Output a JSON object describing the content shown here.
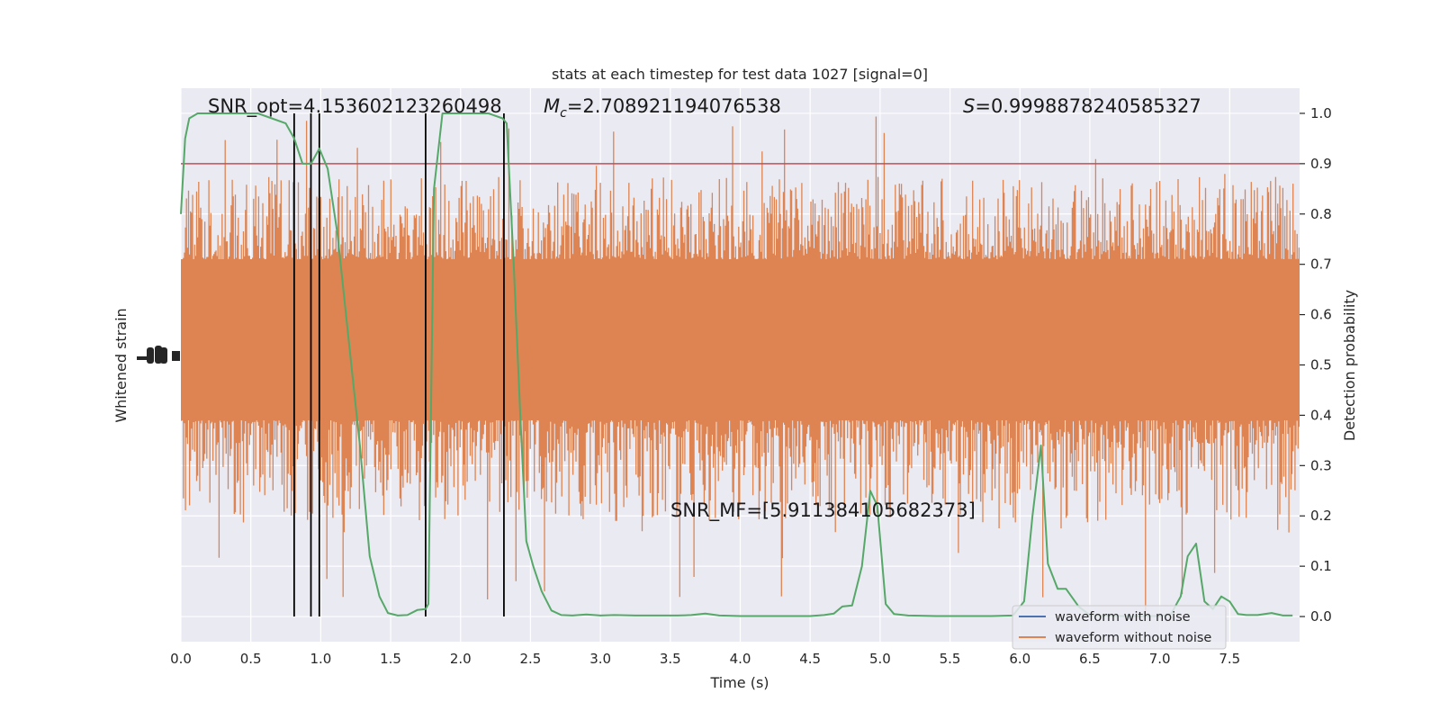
{
  "chart_data": {
    "type": "line",
    "title": "stats at each timestep for test data 1027 [signal=0]",
    "xlabel": "Time (s)",
    "ylabel_left": "Whitened strain",
    "ylabel_right": "Detection probability",
    "xlim": [
      0,
      8
    ],
    "ylim_right": [
      -0.05,
      1.05
    ],
    "x_ticks": [
      "0.0",
      "0.5",
      "1.0",
      "1.5",
      "2.0",
      "2.5",
      "3.0",
      "3.5",
      "4.0",
      "4.5",
      "5.0",
      "5.5",
      "6.0",
      "6.5",
      "7.0",
      "7.5"
    ],
    "y_ticks_right": [
      "0.0",
      "0.1",
      "0.2",
      "0.3",
      "0.4",
      "0.5",
      "0.6",
      "0.7",
      "0.8",
      "0.9",
      "1.0"
    ],
    "grid": true,
    "legend_position": "lower-right",
    "legend": [
      "waveform with noise",
      "waveform without noise"
    ],
    "series_colors": {
      "waveform with noise": "#4c72b0",
      "waveform without noise": "#dd8452",
      "detection_probability": "#55a868",
      "threshold": "#c44e52",
      "markers": "#000000"
    },
    "annotations": {
      "snr_opt": "SNR_opt=4.153602123260498",
      "mc": "=2.708921194076538",
      "mc_symbol": "M",
      "mc_sub": "c",
      "s": "=0.9998878240585327",
      "s_symbol": "S",
      "snr_mf": "SNR_MF=[5.911384105682373]"
    },
    "threshold": 0.9,
    "vertical_markers": [
      0.81,
      0.93,
      0.99,
      1.75,
      2.31
    ],
    "strain_band_probability_units": {
      "core_low": 0.39,
      "core_high": 0.71,
      "spike_low": 0.0,
      "spike_high": 1.0
    },
    "detection_probability": {
      "x": [
        0.0,
        0.03,
        0.06,
        0.12,
        0.25,
        0.4,
        0.55,
        0.65,
        0.75,
        0.81,
        0.87,
        0.93,
        0.99,
        1.05,
        1.12,
        1.2,
        1.28,
        1.35,
        1.42,
        1.48,
        1.55,
        1.62,
        1.69,
        1.75,
        1.77,
        1.81,
        1.87,
        1.95,
        2.05,
        2.2,
        2.3,
        2.33,
        2.38,
        2.43,
        2.47,
        2.52,
        2.58,
        2.65,
        2.72,
        2.8,
        2.9,
        3.0,
        3.1,
        3.25,
        3.4,
        3.55,
        3.65,
        3.75,
        3.85,
        4.0,
        4.2,
        4.4,
        4.5,
        4.6,
        4.67,
        4.73,
        4.8,
        4.87,
        4.93,
        4.98,
        5.04,
        5.1,
        5.2,
        5.4,
        5.6,
        5.8,
        5.95,
        6.03,
        6.09,
        6.15,
        6.2,
        6.27,
        6.33,
        6.42,
        6.5,
        6.6,
        6.7,
        6.85,
        7.0,
        7.08,
        7.15,
        7.2,
        7.26,
        7.32,
        7.38,
        7.44,
        7.5,
        7.56,
        7.62,
        7.7,
        7.8,
        7.88,
        7.95
      ],
      "y": [
        0.8,
        0.95,
        0.99,
        1.0,
        1.0,
        1.0,
        1.0,
        0.99,
        0.98,
        0.95,
        0.9,
        0.9,
        0.93,
        0.89,
        0.76,
        0.55,
        0.34,
        0.12,
        0.04,
        0.007,
        0.002,
        0.003,
        0.013,
        0.015,
        0.025,
        0.85,
        1.0,
        1.0,
        1.0,
        1.0,
        0.99,
        0.98,
        0.7,
        0.38,
        0.15,
        0.1,
        0.05,
        0.012,
        0.003,
        0.002,
        0.004,
        0.002,
        0.003,
        0.002,
        0.002,
        0.002,
        0.003,
        0.006,
        0.002,
        0.001,
        0.001,
        0.001,
        0.001,
        0.003,
        0.006,
        0.02,
        0.022,
        0.1,
        0.25,
        0.22,
        0.025,
        0.005,
        0.002,
        0.001,
        0.001,
        0.001,
        0.002,
        0.03,
        0.2,
        0.34,
        0.105,
        0.055,
        0.055,
        0.02,
        0.003,
        0.002,
        0.001,
        0.001,
        0.001,
        0.005,
        0.04,
        0.12,
        0.145,
        0.03,
        0.015,
        0.04,
        0.03,
        0.005,
        0.003,
        0.003,
        0.007,
        0.002,
        0.002
      ]
    }
  }
}
